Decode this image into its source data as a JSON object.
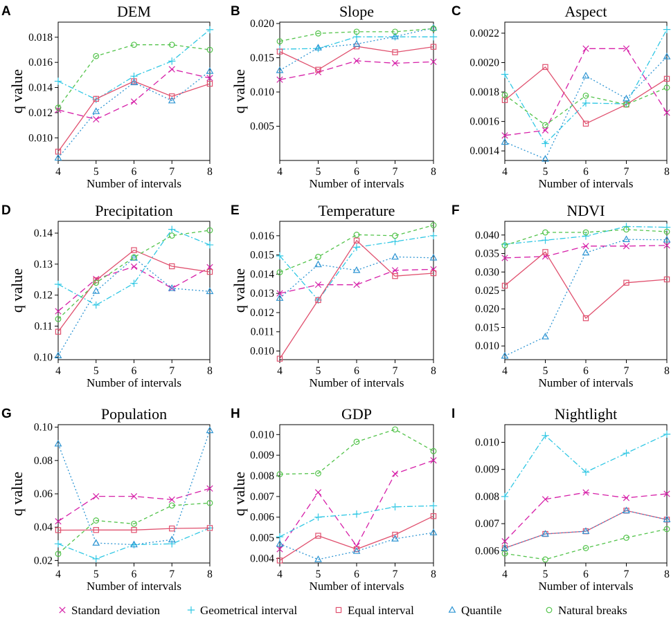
{
  "legend": [
    {
      "key": "sd",
      "label": "Standard deviation",
      "marker": "x-icon",
      "color": "#d61fa8",
      "dash": "9,5"
    },
    {
      "key": "gi",
      "label": "Geometrical interval",
      "marker": "plus-icon",
      "color": "#2fc7e4",
      "dash": "8,3,2,3"
    },
    {
      "key": "ei",
      "label": "Equal interval",
      "marker": "square-icon",
      "color": "#e0506e",
      "dash": ""
    },
    {
      "key": "qu",
      "label": "Quantile",
      "marker": "triangle-icon",
      "color": "#2e95d3",
      "dash": "2,3"
    },
    {
      "key": "nb",
      "label": "Natural breaks",
      "marker": "circle-icon",
      "color": "#52c34a",
      "dash": "5,4"
    }
  ],
  "chart_data": [
    {
      "panel": "A",
      "type": "line",
      "title": "DEM",
      "xlabel": "Number of intervals",
      "ylabel": "q value",
      "x": [
        4,
        5,
        6,
        7,
        8
      ],
      "xlim": [
        4,
        8
      ],
      "ylim": [
        0.0082,
        0.0192
      ],
      "yticks": [
        "0.010",
        "0.012",
        "0.014",
        "0.016",
        "0.018"
      ],
      "ytick_values": [
        0.01,
        0.012,
        0.014,
        0.016,
        0.018
      ],
      "series": [
        {
          "key": "sd",
          "name": "Standard deviation",
          "values": [
            0.01222,
            0.01147,
            0.01288,
            0.01545,
            0.01475
          ]
        },
        {
          "key": "gi",
          "name": "Geometrical interval",
          "values": [
            0.0145,
            0.01305,
            0.0149,
            0.0161,
            0.0186
          ]
        },
        {
          "key": "ei",
          "name": "Equal interval",
          "values": [
            0.0089,
            0.0131,
            0.0145,
            0.0133,
            0.0143
          ]
        },
        {
          "key": "qu",
          "name": "Quantile",
          "values": [
            0.0084,
            0.0121,
            0.0144,
            0.01295,
            0.0153
          ]
        },
        {
          "key": "nb",
          "name": "Natural breaks",
          "values": [
            0.0124,
            0.0165,
            0.0174,
            0.0174,
            0.017
          ]
        }
      ]
    },
    {
      "panel": "B",
      "type": "line",
      "title": "Slope",
      "xlabel": "Number of intervals",
      "ylabel": "q value",
      "x": [
        4,
        5,
        6,
        7,
        8
      ],
      "xlim": [
        4,
        8
      ],
      "ylim": [
        0.0,
        0.0202
      ],
      "yticks": [
        "0.005",
        "0.010",
        "0.015",
        "0.020"
      ],
      "ytick_values": [
        0.005,
        0.01,
        0.015,
        0.02
      ],
      "series": [
        {
          "key": "sd",
          "name": "Standard deviation",
          "values": [
            0.0118,
            0.0129,
            0.01455,
            0.0142,
            0.0144
          ]
        },
        {
          "key": "gi",
          "name": "Geometrical interval",
          "values": [
            0.01625,
            0.01635,
            0.01805,
            0.01805,
            0.01805
          ]
        },
        {
          "key": "ei",
          "name": "Equal interval",
          "values": [
            0.0159,
            0.01325,
            0.01665,
            0.0158,
            0.0166
          ]
        },
        {
          "key": "qu",
          "name": "Quantile",
          "values": [
            0.01315,
            0.01645,
            0.017,
            0.0181,
            0.01935
          ]
        },
        {
          "key": "nb",
          "name": "Natural breaks",
          "values": [
            0.0174,
            0.01855,
            0.0188,
            0.0188,
            0.01925
          ]
        }
      ]
    },
    {
      "panel": "C",
      "type": "line",
      "title": "Aspect",
      "xlabel": "Number of intervals",
      "ylabel": "",
      "x": [
        4,
        5,
        6,
        7,
        8
      ],
      "xlim": [
        4,
        8
      ],
      "ylim": [
        0.001335,
        0.002275
      ],
      "yticks": [
        "0.0014",
        "0.0016",
        "0.0018",
        "0.0020",
        "0.0022"
      ],
      "ytick_values": [
        0.0014,
        0.0016,
        0.0018,
        0.002,
        0.0022
      ],
      "series": [
        {
          "key": "sd",
          "name": "Standard deviation",
          "values": [
            0.001505,
            0.00154,
            0.002095,
            0.002095,
            0.00166
          ]
        },
        {
          "key": "gi",
          "name": "Geometrical interval",
          "values": [
            0.00192,
            0.00145,
            0.001725,
            0.00172,
            0.002225
          ]
        },
        {
          "key": "ei",
          "name": "Equal interval",
          "values": [
            0.001745,
            0.00197,
            0.001585,
            0.001715,
            0.00189
          ]
        },
        {
          "key": "qu",
          "name": "Quantile",
          "values": [
            0.00146,
            0.001345,
            0.00191,
            0.001755,
            0.00204
          ]
        },
        {
          "key": "nb",
          "name": "Natural breaks",
          "values": [
            0.00178,
            0.001575,
            0.001775,
            0.001715,
            0.00183
          ]
        }
      ]
    },
    {
      "panel": "D",
      "type": "line",
      "title": "Precipitation",
      "xlabel": "Number of intervals",
      "ylabel": "q value",
      "x": [
        4,
        5,
        6,
        7,
        8
      ],
      "xlim": [
        4,
        8
      ],
      "ylim": [
        0.0992,
        0.1438
      ],
      "yticks": [
        "0.10",
        "0.11",
        "0.12",
        "0.13",
        "0.14"
      ],
      "ytick_values": [
        0.1,
        0.11,
        0.12,
        0.13,
        0.14
      ],
      "series": [
        {
          "key": "sd",
          "name": "Standard deviation",
          "values": [
            0.1148,
            0.1252,
            0.1292,
            0.1222,
            0.129
          ]
        },
        {
          "key": "gi",
          "name": "Geometrical interval",
          "values": [
            0.1235,
            0.1168,
            0.1238,
            0.1412,
            0.1362
          ]
        },
        {
          "key": "ei",
          "name": "Equal interval",
          "values": [
            0.1082,
            0.1248,
            0.1345,
            0.1293,
            0.1275
          ]
        },
        {
          "key": "qu",
          "name": "Quantile",
          "values": [
            0.1005,
            0.1213,
            0.132,
            0.1222,
            0.1212
          ]
        },
        {
          "key": "nb",
          "name": "Natural breaks",
          "values": [
            0.1123,
            0.124,
            0.1322,
            0.1392,
            0.1409
          ]
        }
      ]
    },
    {
      "panel": "E",
      "type": "line",
      "title": "Temperature",
      "xlabel": "Number of intervals",
      "ylabel": "q value",
      "x": [
        4,
        5,
        6,
        7,
        8
      ],
      "xlim": [
        4,
        8
      ],
      "ylim": [
        0.00955,
        0.01675
      ],
      "yticks": [
        "0.010",
        "0.011",
        "0.012",
        "0.013",
        "0.014",
        "0.015",
        "0.016"
      ],
      "ytick_values": [
        0.01,
        0.011,
        0.012,
        0.013,
        0.014,
        0.015,
        0.016
      ],
      "series": [
        {
          "key": "sd",
          "name": "Standard deviation",
          "values": [
            0.013,
            0.01345,
            0.01345,
            0.0142,
            0.01425
          ]
        },
        {
          "key": "gi",
          "name": "Geometrical interval",
          "values": [
            0.01495,
            0.01265,
            0.0154,
            0.0157,
            0.016
          ]
        },
        {
          "key": "ei",
          "name": "Equal interval",
          "values": [
            0.0096,
            0.01265,
            0.01575,
            0.0139,
            0.01405
          ]
        },
        {
          "key": "qu",
          "name": "Quantile",
          "values": [
            0.01275,
            0.0145,
            0.0142,
            0.0149,
            0.01485
          ]
        },
        {
          "key": "nb",
          "name": "Natural breaks",
          "values": [
            0.0141,
            0.0149,
            0.01605,
            0.016,
            0.01655
          ]
        }
      ]
    },
    {
      "panel": "F",
      "type": "line",
      "title": "NDVI",
      "xlabel": "Number of intervals",
      "ylabel": "",
      "x": [
        4,
        5,
        6,
        7,
        8
      ],
      "xlim": [
        4,
        8
      ],
      "ylim": [
        0.0063,
        0.0437
      ],
      "yticks": [
        "0.010",
        "0.015",
        "0.020",
        "0.025",
        "0.030",
        "0.035",
        "0.040"
      ],
      "ytick_values": [
        0.01,
        0.015,
        0.02,
        0.025,
        0.03,
        0.035,
        0.04
      ],
      "series": [
        {
          "key": "sd",
          "name": "Standard deviation",
          "values": [
            0.0338,
            0.0342,
            0.037,
            0.037,
            0.0372
          ]
        },
        {
          "key": "gi",
          "name": "Geometrical interval",
          "values": [
            0.0375,
            0.0386,
            0.0397,
            0.0423,
            0.0421
          ]
        },
        {
          "key": "ei",
          "name": "Equal interval",
          "values": [
            0.0263,
            0.0354,
            0.0175,
            0.0271,
            0.028
          ]
        },
        {
          "key": "qu",
          "name": "Quantile",
          "values": [
            0.0073,
            0.0125,
            0.0352,
            0.0388,
            0.0387
          ]
        },
        {
          "key": "nb",
          "name": "Natural breaks",
          "values": [
            0.0372,
            0.0407,
            0.0407,
            0.0415,
            0.0409
          ]
        }
      ]
    },
    {
      "panel": "G",
      "type": "line",
      "title": "Population",
      "xlabel": "Number of intervals",
      "ylabel": "q value",
      "x": [
        4,
        5,
        6,
        7,
        8
      ],
      "xlim": [
        4,
        8
      ],
      "ylim": [
        0.0185,
        0.1015
      ],
      "yticks": [
        "0.02",
        "0.04",
        "0.06",
        "0.08",
        "0.10"
      ],
      "ytick_values": [
        0.02,
        0.04,
        0.06,
        0.08,
        0.1
      ],
      "series": [
        {
          "key": "sd",
          "name": "Standard deviation",
          "values": [
            0.0435,
            0.0585,
            0.0585,
            0.0565,
            0.0632
          ]
        },
        {
          "key": "gi",
          "name": "Geometrical interval",
          "values": [
            0.03,
            0.021,
            0.0295,
            0.03,
            0.0395
          ]
        },
        {
          "key": "ei",
          "name": "Equal interval",
          "values": [
            0.0382,
            0.0383,
            0.0383,
            0.0392,
            0.0395
          ]
        },
        {
          "key": "qu",
          "name": "Quantile",
          "values": [
            0.09,
            0.0305,
            0.0295,
            0.0325,
            0.098
          ]
        },
        {
          "key": "nb",
          "name": "Natural breaks",
          "values": [
            0.024,
            0.044,
            0.042,
            0.053,
            0.0545
          ]
        }
      ]
    },
    {
      "panel": "H",
      "type": "line",
      "title": "GDP",
      "xlabel": "Number of intervals",
      "ylabel": "q value",
      "x": [
        4,
        5,
        6,
        7,
        8
      ],
      "xlim": [
        4,
        8
      ],
      "ylim": [
        0.00378,
        0.01048
      ],
      "yticks": [
        "0.004",
        "0.005",
        "0.006",
        "0.007",
        "0.008",
        "0.009",
        "0.010"
      ],
      "ytick_values": [
        0.004,
        0.005,
        0.006,
        0.007,
        0.008,
        0.009,
        0.01
      ],
      "series": [
        {
          "key": "sd",
          "name": "Standard deviation",
          "values": [
            0.00445,
            0.0072,
            0.0046,
            0.0081,
            0.00875
          ]
        },
        {
          "key": "gi",
          "name": "Geometrical interval",
          "values": [
            0.00505,
            0.006,
            0.00615,
            0.0065,
            0.00655
          ]
        },
        {
          "key": "ei",
          "name": "Equal interval",
          "values": [
            0.0039,
            0.0051,
            0.00445,
            0.00515,
            0.00605
          ]
        },
        {
          "key": "qu",
          "name": "Quantile",
          "values": [
            0.0047,
            0.00395,
            0.00435,
            0.00495,
            0.00525
          ]
        },
        {
          "key": "nb",
          "name": "Natural breaks",
          "values": [
            0.00808,
            0.00812,
            0.00965,
            0.01025,
            0.0092
          ]
        }
      ]
    },
    {
      "panel": "I",
      "type": "line",
      "title": "Nightlight",
      "xlabel": "Number of intervals",
      "ylabel": "",
      "x": [
        4,
        5,
        6,
        7,
        8
      ],
      "xlim": [
        4,
        8
      ],
      "ylim": [
        0.00555,
        0.01065
      ],
      "yticks": [
        "0.006",
        "0.007",
        "0.008",
        "0.009",
        "0.010"
      ],
      "ytick_values": [
        0.006,
        0.007,
        0.008,
        0.009,
        0.01
      ],
      "series": [
        {
          "key": "sd",
          "name": "Standard deviation",
          "values": [
            0.00635,
            0.0079,
            0.00815,
            0.00795,
            0.0081
          ]
        },
        {
          "key": "gi",
          "name": "Geometrical interval",
          "values": [
            0.008,
            0.01025,
            0.0089,
            0.0096,
            0.0103
          ]
        },
        {
          "key": "ei",
          "name": "Equal interval",
          "values": [
            0.0061,
            0.00662,
            0.00672,
            0.00748,
            0.00715
          ]
        },
        {
          "key": "qu",
          "name": "Quantile",
          "values": [
            0.0061,
            0.00662,
            0.00672,
            0.00748,
            0.00715
          ]
        },
        {
          "key": "nb",
          "name": "Natural breaks",
          "values": [
            0.0059,
            0.00568,
            0.0061,
            0.00648,
            0.0068
          ]
        }
      ]
    }
  ]
}
